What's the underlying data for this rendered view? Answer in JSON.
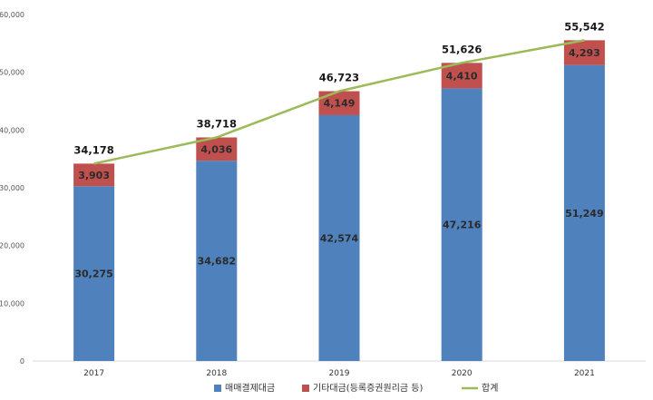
{
  "chart_data": {
    "type": "bar",
    "stacked": true,
    "categories": [
      "2017",
      "2018",
      "2019",
      "2020",
      "2021"
    ],
    "series": [
      {
        "name": "매매결제대금",
        "type": "bar",
        "color": "#4f81bd",
        "values": [
          30275,
          34682,
          42574,
          47216,
          51249
        ]
      },
      {
        "name": "기타대금(등록증권원리금 등)",
        "type": "bar",
        "color": "#c0504d",
        "values": [
          3903,
          4036,
          4149,
          4410,
          4293
        ]
      },
      {
        "name": "합계",
        "type": "line",
        "color": "#9bbb59",
        "values": [
          34178,
          38718,
          46723,
          51626,
          55542
        ]
      }
    ],
    "ylim": [
      0,
      60000
    ],
    "yticks": [
      "0",
      "10,000",
      "20,000",
      "30,000",
      "40,000",
      "50,000",
      "60,000"
    ],
    "data_labels": {
      "매매결제대금": [
        "30,275",
        "34,682",
        "42,574",
        "47,216",
        "51,249"
      ],
      "기타대금(등록증권원리금 등)": [
        "3,903",
        "4,036",
        "4,149",
        "4,410",
        "4,293"
      ],
      "합계": [
        "34,178",
        "38,718",
        "46,723",
        "51,626",
        "55,542"
      ]
    },
    "grid": false,
    "legend_position": "bottom"
  }
}
